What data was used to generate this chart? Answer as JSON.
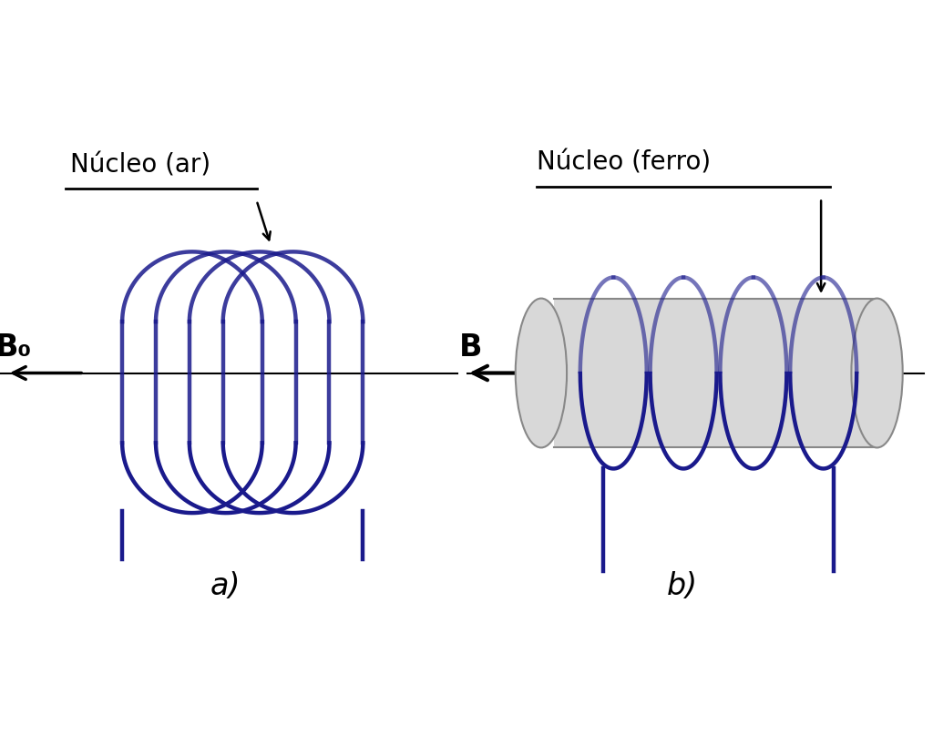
{
  "bg_color": "#ffffff",
  "coil_color": "#1a1a8c",
  "coil_linewidth": 3.2,
  "text_color": "#000000",
  "cylinder_color": "#d8d8d8",
  "cylinder_edge_color": "#888888",
  "label_a": "a)",
  "label_b": "b)",
  "nucleo_ar": "Núcleo (ar)",
  "nucleo_ferro": "Núcleo (ferro)",
  "B0_label": "B₀",
  "B_label": "B",
  "title_fontsize": 20,
  "label_fontsize": 24,
  "sub_fontsize": 16
}
